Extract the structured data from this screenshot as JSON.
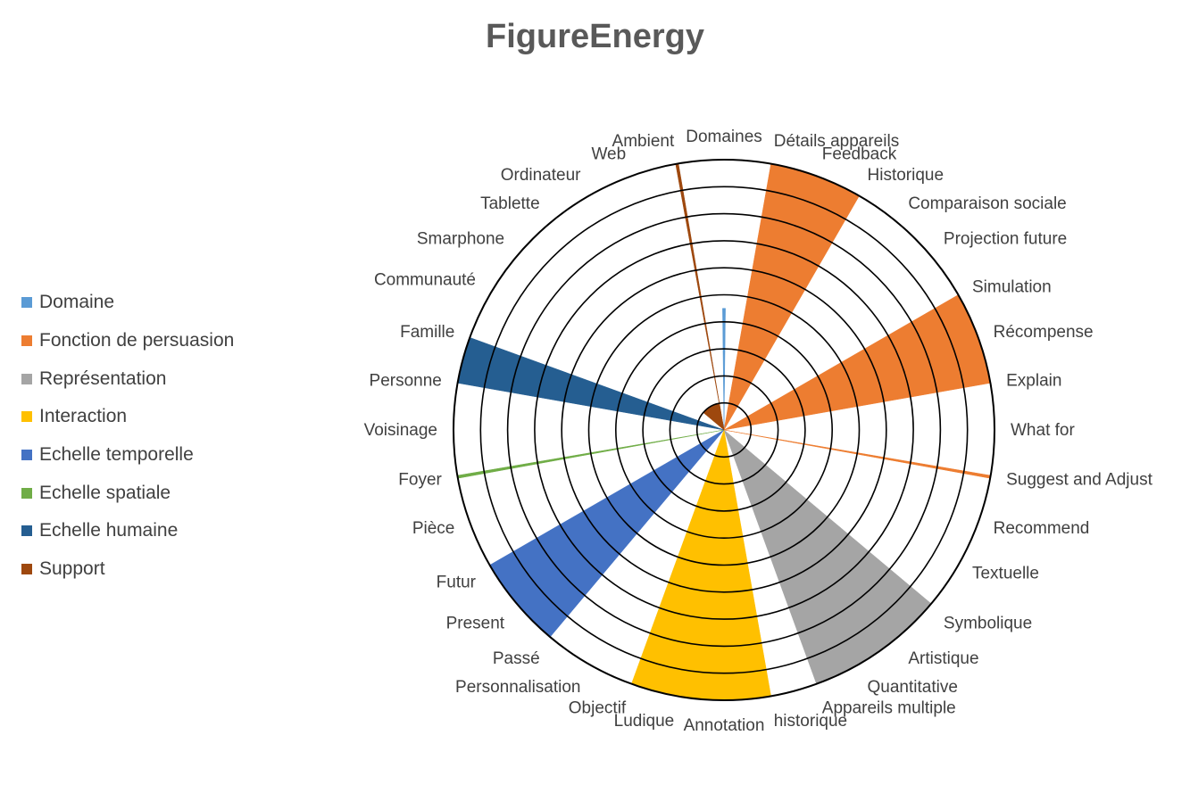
{
  "chart_data": {
    "type": "radar",
    "title": "FigureEnergy",
    "legend_position": "left",
    "grid": true,
    "rmax": 10,
    "ring_count": 10,
    "categories": [
      "Domaines",
      "Détails appareils",
      "Feedback",
      "Historique",
      "Comparaison sociale",
      "Projection future",
      "Simulation",
      "Récompense",
      "Explain",
      "What for",
      "Suggest and Adjust",
      "Recommend",
      "Textuelle",
      "Symbolique",
      "Artistique",
      "Quantitative",
      "Appareils multiple",
      "historique",
      "Annotation",
      "Ludique",
      "Objectif",
      "Personnalisation",
      "Passé",
      "Present",
      "Futur",
      "Pièce",
      "Foyer",
      "Voisinage",
      "Personne",
      "Famille",
      "Communauté",
      "Smarphone",
      "Tablette",
      "Ordinateur",
      "Web",
      "Ambient"
    ],
    "series": [
      {
        "name": "Domaine",
        "color": "#5B9BD5",
        "wedges": [
          {
            "from": 0,
            "to": 0,
            "value": 4.5
          }
        ]
      },
      {
        "name": "Fonction de persuasion",
        "color": "#ED7D31",
        "wedges": [
          {
            "from": 1,
            "to": 3,
            "value": 10
          },
          {
            "from": 6,
            "to": 8,
            "value": 10
          },
          {
            "from": 10,
            "to": 10,
            "value": 10
          }
        ]
      },
      {
        "name": "Représentation",
        "color": "#A5A5A5",
        "wedges": [
          {
            "from": 13,
            "to": 16,
            "value": 10
          }
        ]
      },
      {
        "name": "Interaction",
        "color": "#FFC000",
        "wedges": [
          {
            "from": 17,
            "to": 20,
            "value": 10
          }
        ]
      },
      {
        "name": "Echelle temporelle",
        "color": "#4472C4",
        "wedges": [
          {
            "from": 22,
            "to": 24,
            "value": 10
          }
        ]
      },
      {
        "name": "Echelle spatiale",
        "color": "#70AD47",
        "wedges": [
          {
            "from": 26,
            "to": 26,
            "value": 10
          }
        ]
      },
      {
        "name": "Echelle humaine",
        "color": "#255E91",
        "wedges": [
          {
            "from": 28,
            "to": 29,
            "value": 10
          }
        ]
      },
      {
        "name": "Support",
        "color": "#9E480E",
        "wedges": [
          {
            "from": 31,
            "to": 35,
            "value": 1
          },
          {
            "from": 35,
            "to": 35,
            "value": 10
          }
        ]
      }
    ]
  }
}
